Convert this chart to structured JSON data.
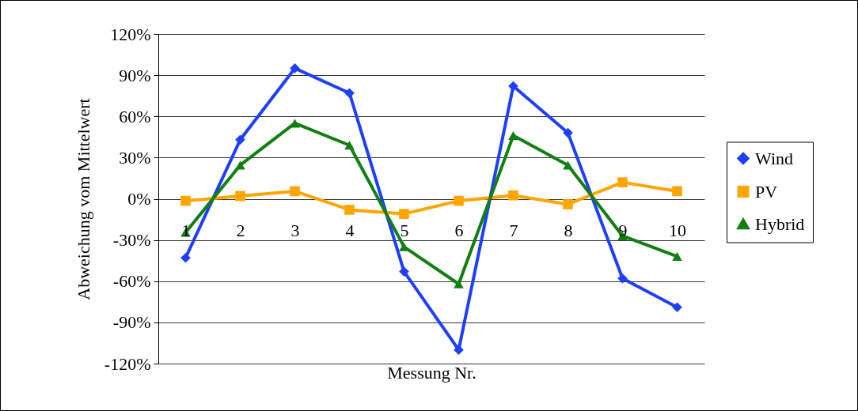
{
  "chart_data": {
    "type": "line",
    "xlabel": "Messung Nr.",
    "ylabel": "Abweichung vom Mittelwert",
    "categories": [
      "1",
      "2",
      "3",
      "4",
      "5",
      "6",
      "7",
      "8",
      "9",
      "10"
    ],
    "series": [
      {
        "name": "Wind",
        "color": "#1f3fff",
        "marker": "diamond",
        "values": [
          -43,
          43,
          95,
          77,
          -53,
          -110,
          82,
          48,
          -58,
          -79
        ]
      },
      {
        "name": "PV",
        "color": "#ffa500",
        "marker": "square",
        "values": [
          -1.5,
          2,
          5.5,
          -8,
          -11,
          -1.5,
          2.5,
          -4,
          12,
          5.5
        ]
      },
      {
        "name": "Hybrid",
        "color": "#118011",
        "marker": "triangle",
        "values": [
          -24.5,
          24.5,
          55,
          39,
          -35,
          -62,
          46,
          24.5,
          -27,
          -42
        ]
      }
    ],
    "ylim": [
      -120,
      120
    ],
    "yticks": [
      {
        "value": -120,
        "label": "-120%"
      },
      {
        "value": -90,
        "label": "-90%"
      },
      {
        "value": -60,
        "label": "-60%"
      },
      {
        "value": -30,
        "label": "-30%"
      },
      {
        "value": 0,
        "label": "0%"
      },
      {
        "value": 30,
        "label": "30%"
      },
      {
        "value": 60,
        "label": "60%"
      },
      {
        "value": 90,
        "label": "90%"
      },
      {
        "value": 120,
        "label": "120%"
      }
    ],
    "grid": "y",
    "legend": "right"
  }
}
